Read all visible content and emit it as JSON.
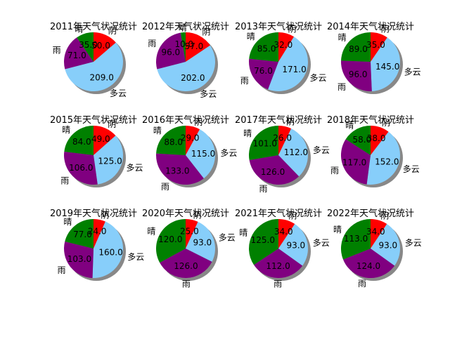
{
  "colors": {
    "阴": "#ff0000",
    "多云": "#87cefa",
    "雨": "#800080",
    "晴": "#008000",
    "shadow": "#888888"
  },
  "chart_data": [
    {
      "type": "pie",
      "title": "2011年天气状况统计",
      "categories": [
        "阴",
        "多云",
        "雨",
        "晴"
      ],
      "values": [
        50,
        209,
        71,
        35
      ]
    },
    {
      "type": "pie",
      "title": "2012年天气状况统计",
      "categories": [
        "阴",
        "多云",
        "雨",
        "晴"
      ],
      "values": [
        57,
        202,
        96,
        10
      ]
    },
    {
      "type": "pie",
      "title": "2013年天气状况统计",
      "categories": [
        "阴",
        "多云",
        "雨",
        "晴"
      ],
      "values": [
        32,
        171,
        76,
        85
      ]
    },
    {
      "type": "pie",
      "title": "2014年天气状况统计",
      "categories": [
        "阴",
        "多云",
        "雨",
        "晴"
      ],
      "values": [
        35,
        145,
        96,
        89
      ]
    },
    {
      "type": "pie",
      "title": "2015年天气状况统计",
      "categories": [
        "阴",
        "多云",
        "雨",
        "晴"
      ],
      "values": [
        49,
        125,
        106,
        84
      ]
    },
    {
      "type": "pie",
      "title": "2016年天气状况统计",
      "categories": [
        "阴",
        "多云",
        "雨",
        "晴"
      ],
      "values": [
        29,
        115,
        133,
        88
      ]
    },
    {
      "type": "pie",
      "title": "2017年天气状况统计",
      "categories": [
        "阴",
        "多云",
        "雨",
        "晴"
      ],
      "values": [
        26,
        112,
        126,
        101
      ]
    },
    {
      "type": "pie",
      "title": "2018年天气状况统计",
      "categories": [
        "阴",
        "多云",
        "雨",
        "晴"
      ],
      "values": [
        38,
        152,
        117,
        58
      ]
    },
    {
      "type": "pie",
      "title": "2019年天气状况统计",
      "categories": [
        "阴",
        "多云",
        "雨",
        "晴"
      ],
      "values": [
        24,
        160,
        103,
        77
      ]
    },
    {
      "type": "pie",
      "title": "2020年天气状况统计",
      "categories": [
        "阴",
        "多云",
        "雨",
        "晴"
      ],
      "values": [
        25,
        93,
        126,
        120
      ]
    },
    {
      "type": "pie",
      "title": "2021年天气状况统计",
      "categories": [
        "阴",
        "多云",
        "雨",
        "晴"
      ],
      "values": [
        34,
        93,
        112,
        125
      ]
    },
    {
      "type": "pie",
      "title": "2022年天气状况统计",
      "categories": [
        "阴",
        "多云",
        "雨",
        "晴"
      ],
      "values": [
        34,
        93,
        124,
        113
      ]
    }
  ]
}
